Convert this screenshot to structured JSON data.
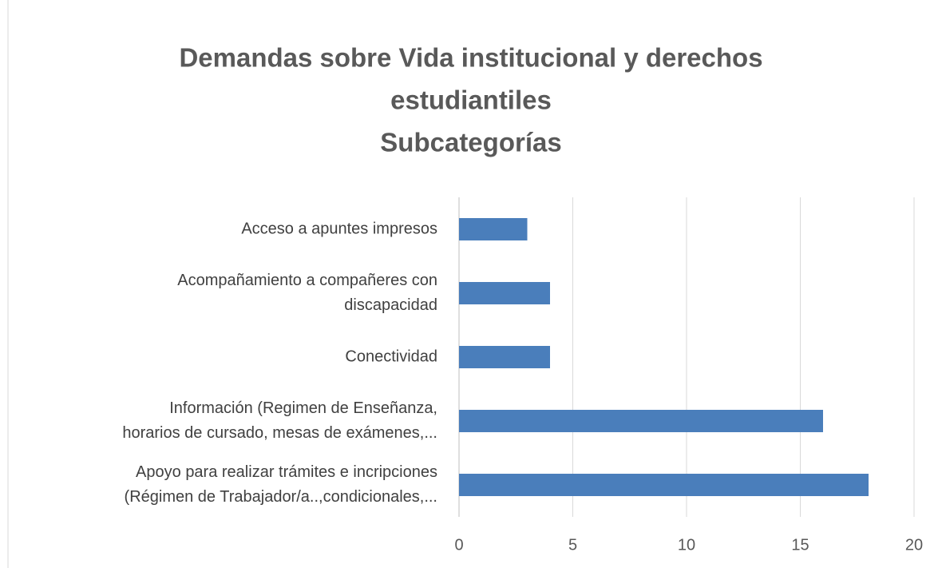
{
  "chart_data": {
    "type": "bar",
    "orientation": "horizontal",
    "title": [
      "Demandas sobre Vida institucional y derechos",
      "estudiantiles",
      "Subcategorías"
    ],
    "categories": [
      [
        "Acceso a apuntes impresos"
      ],
      [
        "Acompañamiento a compañeres con",
        "discapacidad"
      ],
      [
        "Conectividad"
      ],
      [
        "Información (Regimen de Enseñanza,",
        "horarios de cursado, mesas de exámenes,..."
      ],
      [
        "Apoyo para realizar trámites e incripciones",
        "(Régimen de Trabajador/a..,condicionales,..."
      ]
    ],
    "values": [
      3,
      4,
      4,
      16,
      18
    ],
    "color": "#4a7ebb",
    "xlim": [
      0,
      20
    ],
    "xticks": [
      0,
      5,
      10,
      15,
      20
    ],
    "grid": true
  }
}
